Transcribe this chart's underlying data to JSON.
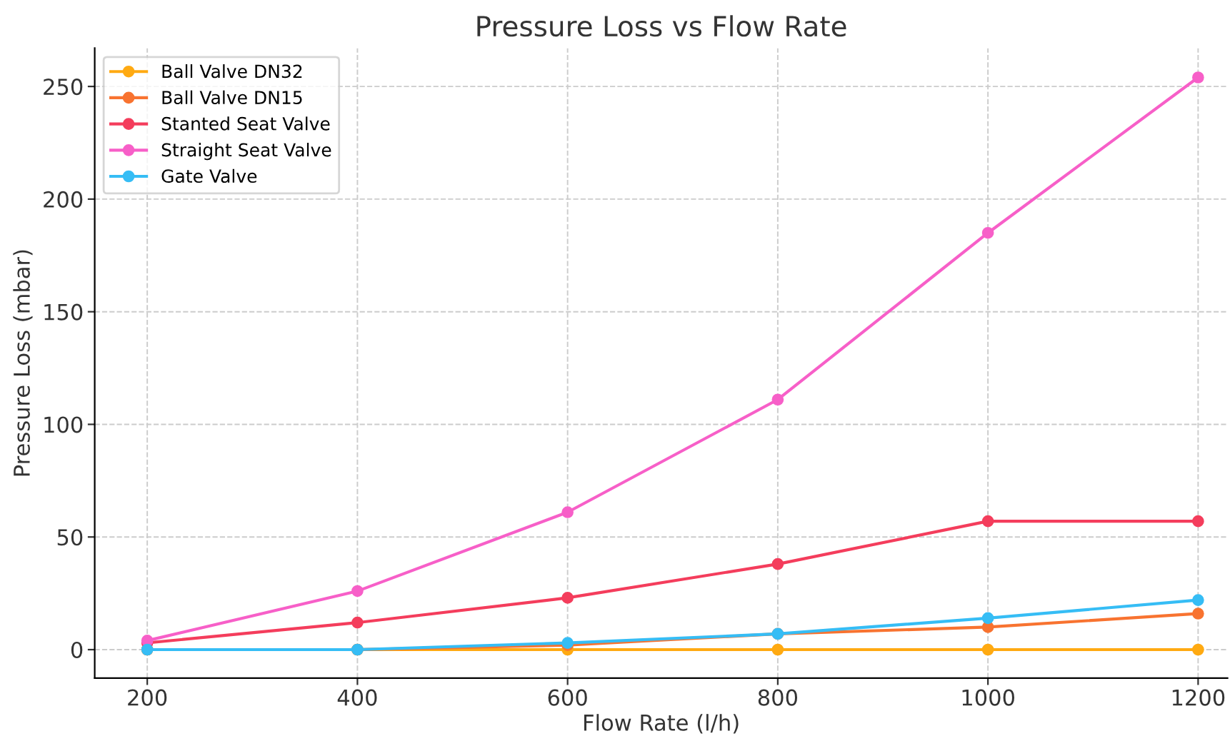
{
  "chart_data": {
    "type": "line",
    "title": "Pressure Loss vs Flow Rate",
    "xlabel": "Flow Rate (l/h)",
    "ylabel": "Pressure Loss (mbar)",
    "x": [
      200,
      400,
      600,
      800,
      1000,
      1200
    ],
    "series": [
      {
        "name": "Ball Valve DN32",
        "color": "#ffaa12",
        "values": [
          0,
          0,
          0,
          0,
          0,
          0
        ]
      },
      {
        "name": "Ball Valve DN15",
        "color": "#f87330",
        "values": [
          0,
          0,
          2,
          7,
          10,
          16
        ]
      },
      {
        "name": "Stanted Seat Valve",
        "color": "#f43d5c",
        "values": [
          3,
          12,
          23,
          38,
          57,
          57
        ]
      },
      {
        "name": "Straight Seat Valve",
        "color": "#f75fc8",
        "values": [
          4,
          26,
          61,
          111,
          185,
          254
        ]
      },
      {
        "name": "Gate Valve",
        "color": "#36bdf5",
        "values": [
          0,
          0,
          3,
          7,
          14,
          22
        ]
      }
    ],
    "xlim": [
      150,
      1228
    ],
    "ylim": [
      -12.6,
      267
    ],
    "xticks": [
      200,
      400,
      600,
      800,
      1000,
      1200
    ],
    "yticks": [
      0,
      50,
      100,
      150,
      200,
      250
    ],
    "grid": true,
    "legend": "top left",
    "marker": "circle",
    "line_style": "solid"
  }
}
